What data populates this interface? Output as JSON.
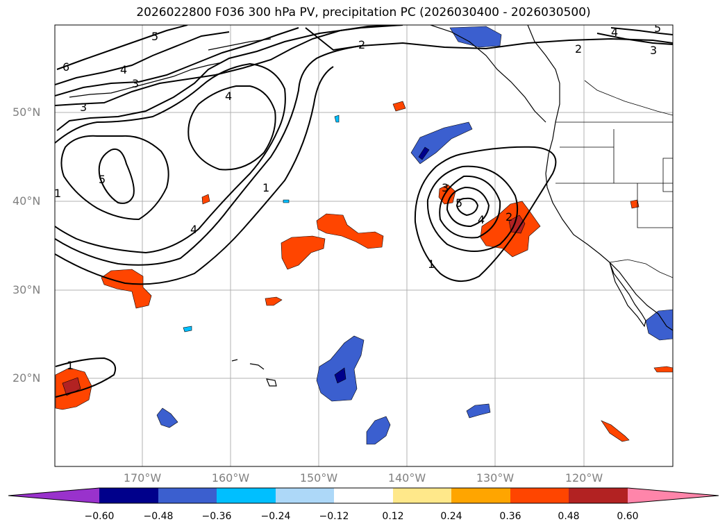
{
  "title": "2026022800 F036 300 hPa PV, precipitation PC (2026030400 - 2026030500)",
  "axes": {
    "lat_labels": [
      "50°N",
      "40°N",
      "30°N",
      "20°N"
    ],
    "lon_labels": [
      "170°W",
      "160°W",
      "150°W",
      "140°W",
      "130°W",
      "120°W"
    ]
  },
  "colorbar": {
    "ticks": [
      "−0.60",
      "−0.48",
      "−0.36",
      "−0.24",
      "−0.12",
      "0.12",
      "0.24",
      "0.36",
      "0.48",
      "0.60"
    ],
    "colors": [
      "#9932cc",
      "#00008b",
      "#3b5fcf",
      "#00bfff",
      "#add8f8",
      "#ffffff",
      "#ffe88a",
      "#ffa500",
      "#ff4500",
      "#b22222",
      "#ff85aa"
    ]
  },
  "contour_labels": [
    "5",
    "6",
    "4",
    "3",
    "3",
    "2",
    "4",
    "5",
    "4",
    "1",
    "1",
    "2",
    "3",
    "4",
    "5",
    "1",
    "2",
    "3",
    "4",
    "5",
    "1"
  ]
}
